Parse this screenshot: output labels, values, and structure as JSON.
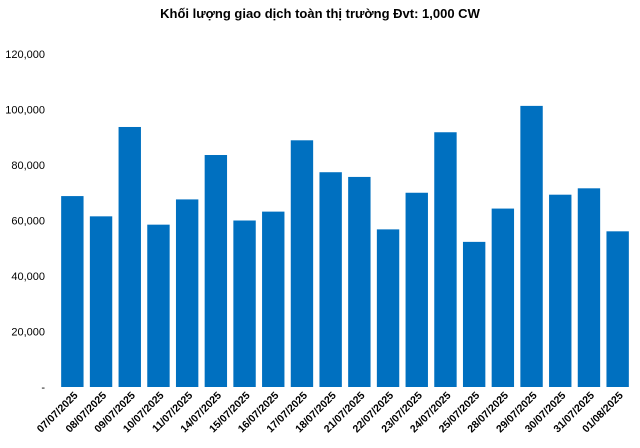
{
  "chart_data": {
    "type": "bar",
    "title": "Khối lượng giao dịch toàn thị trường Đvt: 1,000 CW",
    "xlabel": "",
    "ylabel": "",
    "ylim": [
      0,
      120000
    ],
    "yticks": [
      0,
      20000,
      40000,
      60000,
      80000,
      100000,
      120000
    ],
    "ytick_labels": [
      "-",
      "20,000",
      "40,000",
      "60,000",
      "80,000",
      "100,000",
      "120,000"
    ],
    "grid": false,
    "legend": "none",
    "bar_color": "#0070C0",
    "categories": [
      "07/07/2025",
      "08/07/2025",
      "09/07/2025",
      "10/07/2025",
      "11/07/2025",
      "14/07/2025",
      "15/07/2025",
      "16/07/2025",
      "17/07/2025",
      "18/07/2025",
      "21/07/2025",
      "22/07/2025",
      "23/07/2025",
      "24/07/2025",
      "25/07/2025",
      "28/07/2025",
      "29/07/2025",
      "30/07/2025",
      "31/07/2025",
      "01/08/2025"
    ],
    "values": [
      68800,
      61500,
      93700,
      58500,
      67600,
      83600,
      60000,
      63200,
      88900,
      77400,
      75700,
      56800,
      70000,
      91800,
      52300,
      64300,
      101300,
      69300,
      71600,
      56100
    ]
  }
}
